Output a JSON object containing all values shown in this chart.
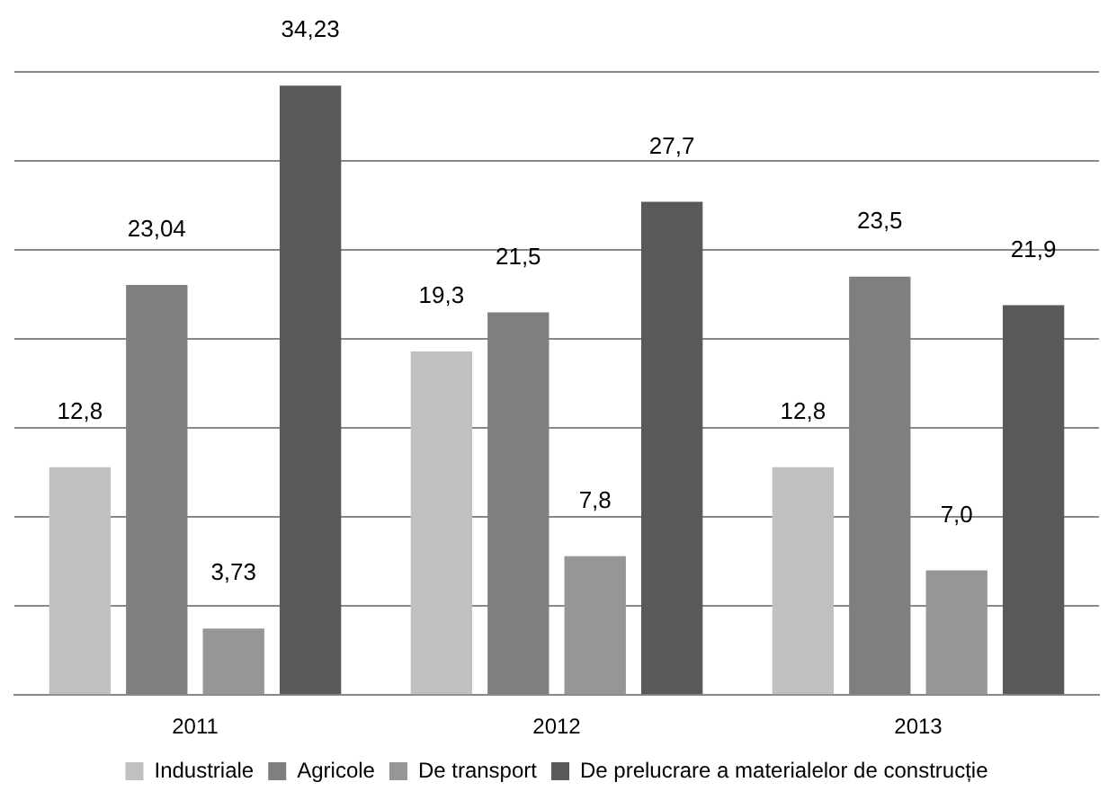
{
  "chart_data": {
    "type": "bar",
    "categories": [
      "2011",
      "2012",
      "2013"
    ],
    "series": [
      {
        "name": "Industriale",
        "color": "#c0c0c0",
        "values": [
          12.8,
          19.3,
          12.8
        ],
        "value_labels": [
          "12,8",
          "19,3",
          "12,8"
        ]
      },
      {
        "name": "Agricole",
        "color": "#7f7f7f",
        "values": [
          23.04,
          21.5,
          23.5
        ],
        "value_labels": [
          "23,04",
          "21,5",
          "23,5"
        ]
      },
      {
        "name": "De transport",
        "color": "#969696",
        "values": [
          3.73,
          7.8,
          7.0
        ],
        "value_labels": [
          "3,73",
          "7,8",
          "7,0"
        ]
      },
      {
        "name": "De prelucrare a materialelor de construcție",
        "color": "#595959",
        "values": [
          34.23,
          27.7,
          21.9
        ],
        "value_labels": [
          "34,23",
          "27,7",
          "21,9"
        ]
      }
    ],
    "ylim": [
      0,
      35
    ],
    "yticks": [
      {
        "value": 0,
        "label": null
      },
      {
        "value": 5,
        "label": null
      },
      {
        "value": 10,
        "label": null
      },
      {
        "value": 15,
        "label": null
      },
      {
        "value": 20,
        "label": null
      },
      {
        "value": 25,
        "label": null
      },
      {
        "value": 30,
        "label": null
      },
      {
        "value": 35,
        "label": null
      }
    ],
    "grid": "y",
    "legend": "bottom",
    "tick_labels": "x"
  }
}
